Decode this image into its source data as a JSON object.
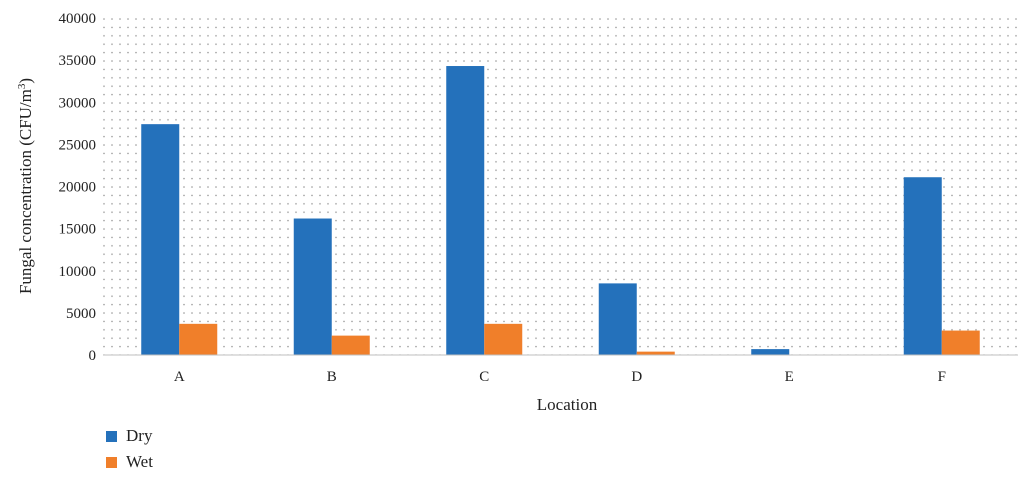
{
  "chart_data": {
    "type": "bar",
    "categories": [
      "A",
      "B",
      "C",
      "D",
      "E",
      "F"
    ],
    "series": [
      {
        "name": "Dry",
        "color": "#2471bb",
        "values": [
          27400,
          16200,
          34300,
          8500,
          700,
          21100
        ]
      },
      {
        "name": "Wet",
        "color": "#f07f2a",
        "values": [
          3700,
          2300,
          3700,
          400,
          0,
          2900
        ]
      }
    ],
    "title": "",
    "xlabel": "Location",
    "ylabel": "Fungal concentration (CFU/m",
    "ylabel_superscript": "3",
    "ylabel_suffix": ")",
    "ylim": [
      0,
      40000
    ],
    "yticks": [
      "0",
      "5000",
      "10000",
      "15000",
      "20000",
      "25000",
      "30000",
      "35000",
      "40000"
    ],
    "grid": "dotted",
    "legend_position": "bottom-left"
  }
}
